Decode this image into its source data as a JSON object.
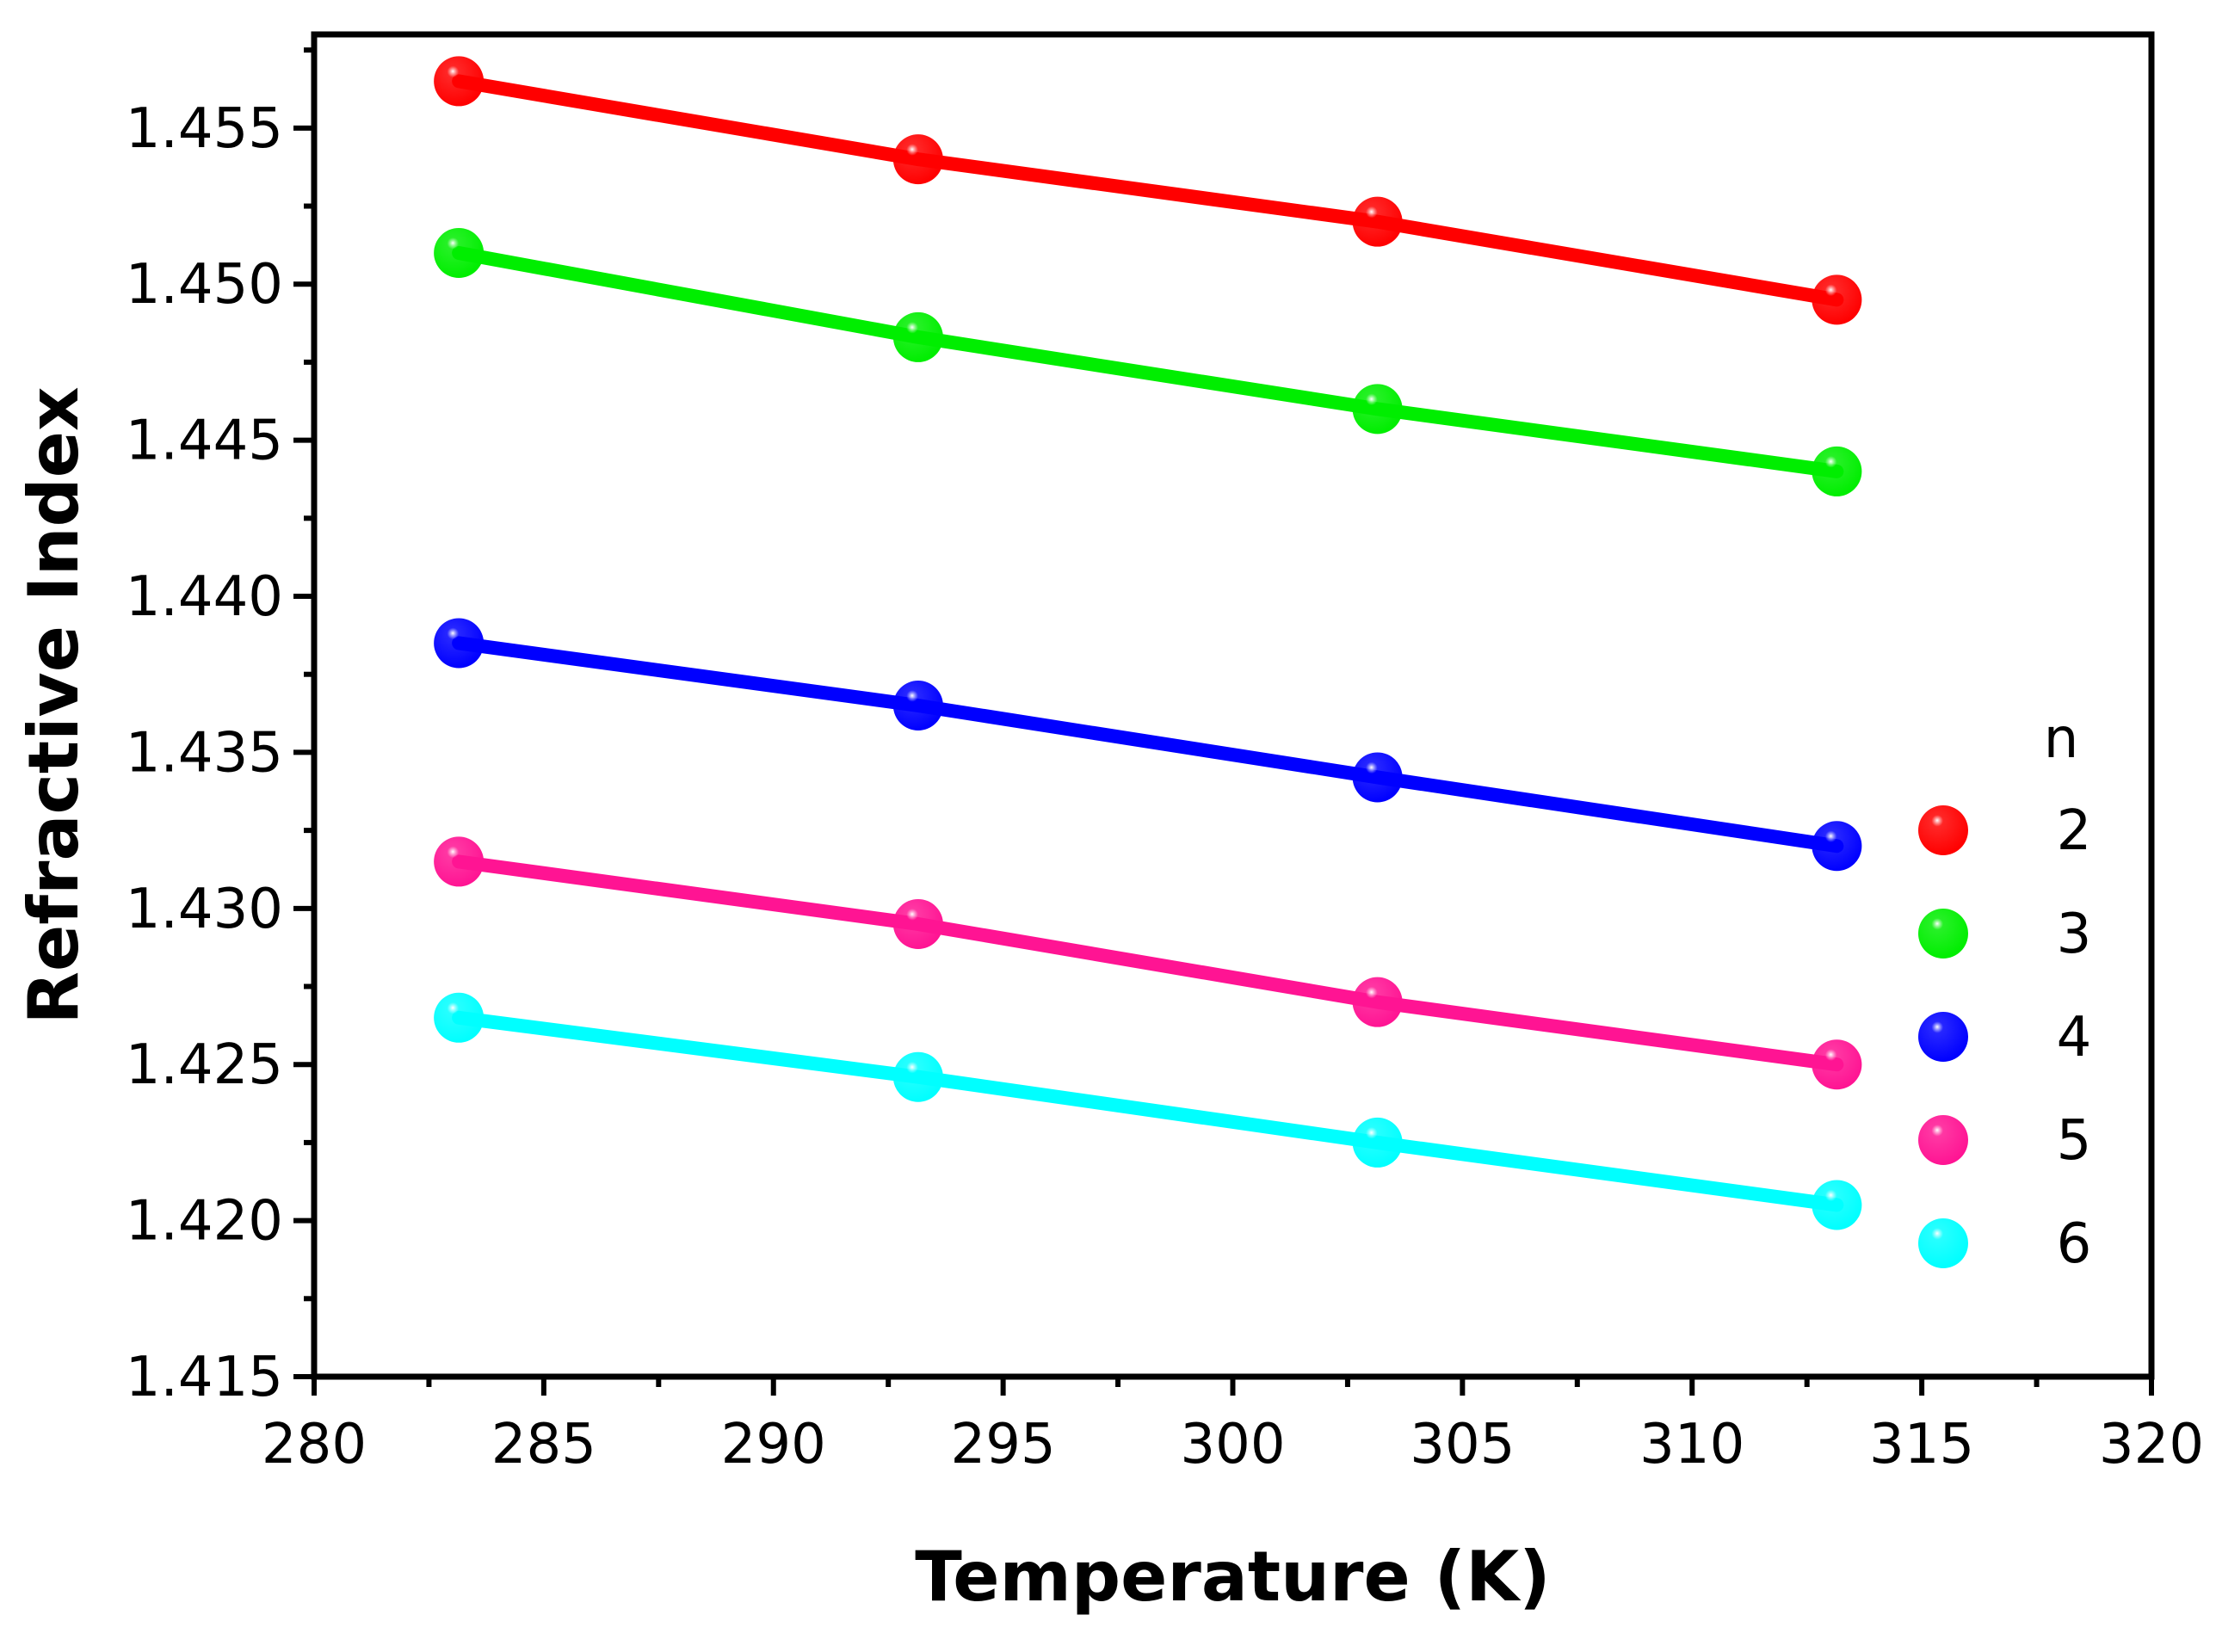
{
  "chart_data": {
    "type": "line",
    "title": "",
    "xlabel": "Temperature (K)",
    "ylabel": "Refractive Index",
    "xlim": [
      280,
      320
    ],
    "ylim": [
      1.415,
      1.458
    ],
    "xticks": [
      "280",
      "285",
      "290",
      "295",
      "300",
      "305",
      "310",
      "315",
      "320"
    ],
    "yticks": [
      "1.415",
      "1.420",
      "1.425",
      "1.430",
      "1.435",
      "1.440",
      "1.445",
      "1.450",
      "1.455"
    ],
    "x": [
      283.15,
      293.15,
      303.15,
      313.15
    ],
    "legend_title": "n",
    "legend_position": "right",
    "series": [
      {
        "name": "2",
        "color": "#ff0000",
        "values": [
          1.4565,
          1.454,
          1.452,
          1.4495
        ]
      },
      {
        "name": "3",
        "color": "#00ee00",
        "values": [
          1.451,
          1.4483,
          1.446,
          1.444
        ]
      },
      {
        "name": "4",
        "color": "#0000ff",
        "values": [
          1.4385,
          1.4365,
          1.4342,
          1.432
        ]
      },
      {
        "name": "5",
        "color": "#ff1493",
        "values": [
          1.4315,
          1.4295,
          1.427,
          1.425
        ]
      },
      {
        "name": "6",
        "color": "#00ffff",
        "values": [
          1.4265,
          1.4246,
          1.4225,
          1.4205
        ]
      }
    ]
  }
}
